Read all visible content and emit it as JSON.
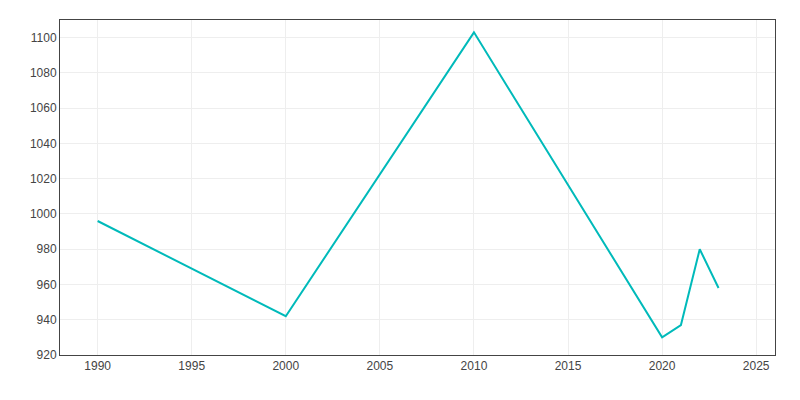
{
  "chart_data": {
    "type": "line",
    "x": [
      1990,
      2000,
      2010,
      2020,
      2021,
      2022,
      2023
    ],
    "values": [
      996,
      942,
      1103,
      930,
      937,
      980,
      958
    ],
    "color": "#00BABA",
    "xlim": [
      1988,
      2026
    ],
    "ylim": [
      920,
      1110
    ],
    "xticks": [
      1990,
      1995,
      2000,
      2005,
      2010,
      2015,
      2020,
      2025
    ],
    "yticks": [
      920,
      940,
      960,
      980,
      1000,
      1020,
      1040,
      1060,
      1080,
      1100
    ],
    "grid": true
  }
}
